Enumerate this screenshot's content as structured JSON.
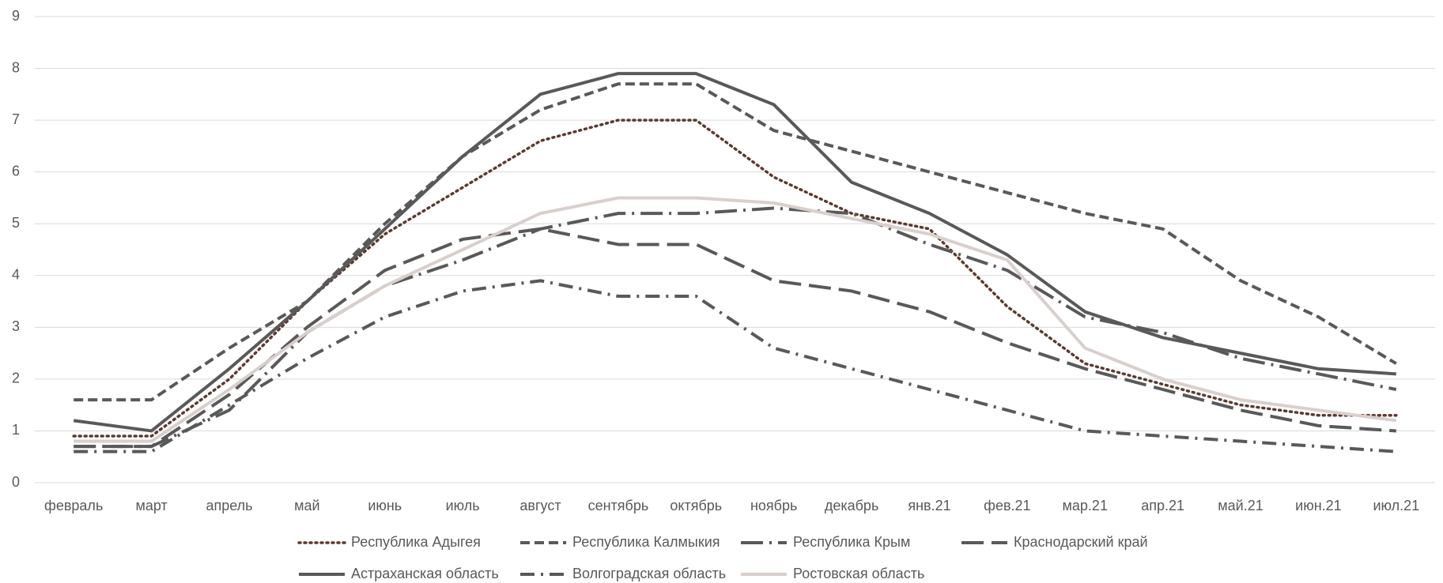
{
  "chart_data": {
    "type": "line",
    "categories": [
      "февраль",
      "март",
      "апрель",
      "май",
      "июнь",
      "июль",
      "август",
      "сентябрь",
      "октябрь",
      "ноябрь",
      "декабрь",
      "янв.21",
      "фев.21",
      "мар.21",
      "апр.21",
      "май.21",
      "июн.21",
      "июл.21"
    ],
    "ylim": [
      0,
      9
    ],
    "yticks": [
      0,
      1,
      2,
      3,
      4,
      5,
      6,
      7,
      8,
      9
    ],
    "grid": true,
    "legend": "bottom",
    "series": [
      {
        "name": "Республика Адыгея",
        "color": "#5b3a2e",
        "dash": "dotted",
        "values": [
          0.9,
          0.9,
          2.0,
          3.5,
          4.8,
          5.7,
          6.6,
          7.0,
          7.0,
          5.9,
          5.2,
          4.9,
          3.4,
          2.3,
          1.9,
          1.5,
          1.3,
          1.3
        ]
      },
      {
        "name": "Республика Калмыкия",
        "color": "#595959",
        "dash": "dashed",
        "values": [
          1.6,
          1.6,
          2.6,
          3.5,
          5.0,
          6.3,
          7.2,
          7.7,
          7.7,
          6.8,
          6.4,
          6.0,
          5.6,
          5.2,
          4.9,
          3.9,
          3.2,
          2.3
        ]
      },
      {
        "name": "Республика Крым",
        "color": "#595959",
        "dash": "long-dash-dot",
        "values": [
          0.7,
          0.7,
          1.4,
          2.9,
          3.8,
          4.3,
          4.9,
          5.2,
          5.2,
          5.3,
          5.2,
          4.6,
          4.1,
          3.2,
          2.9,
          2.4,
          2.1,
          1.8
        ]
      },
      {
        "name": "Краснодарский край",
        "color": "#595959",
        "dash": "long-dash",
        "values": [
          0.7,
          0.7,
          1.7,
          3.0,
          4.1,
          4.7,
          4.9,
          4.6,
          4.6,
          3.9,
          3.7,
          3.3,
          2.7,
          2.2,
          1.8,
          1.4,
          1.1,
          1.0
        ]
      },
      {
        "name": "Астраханская область",
        "color": "#595959",
        "dash": "solid",
        "values": [
          1.2,
          1.0,
          2.2,
          3.5,
          4.9,
          6.3,
          7.5,
          7.9,
          7.9,
          7.3,
          5.8,
          5.2,
          4.4,
          3.3,
          2.8,
          2.5,
          2.2,
          2.1
        ]
      },
      {
        "name": "Волгоградская область",
        "color": "#595959",
        "dash": "dash-dot",
        "values": [
          0.6,
          0.6,
          1.5,
          2.4,
          3.2,
          3.7,
          3.9,
          3.6,
          3.6,
          2.6,
          2.2,
          1.8,
          1.4,
          1.0,
          0.9,
          0.8,
          0.7,
          0.6
        ]
      },
      {
        "name": "Ростовская область",
        "color": "#d9cfcd",
        "dash": "solid",
        "values": [
          0.8,
          0.8,
          1.8,
          2.9,
          3.8,
          4.5,
          5.2,
          5.5,
          5.5,
          5.4,
          5.1,
          4.8,
          4.3,
          2.6,
          2.0,
          1.6,
          1.4,
          1.2
        ]
      }
    ]
  }
}
